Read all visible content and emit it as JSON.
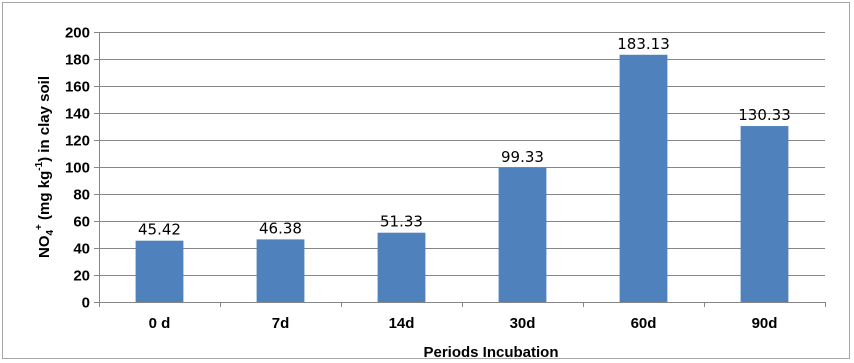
{
  "chart_data": {
    "type": "bar",
    "categories": [
      "0 d",
      "7d",
      "14d",
      "30d",
      "60d",
      "90d"
    ],
    "values": [
      45.42,
      46.38,
      51.33,
      99.33,
      183.13,
      130.33
    ],
    "data_labels": [
      "45.42",
      "46.38",
      "51.33",
      "99.33",
      "183.13",
      "130.33"
    ],
    "title": "",
    "xlabel": "Periods Incubation",
    "ylabel": {
      "base": "NO",
      "sub": "4",
      "sup": "+",
      "mid": " (mg kg",
      "unit_sup": "-1",
      "end": ") in clay soil"
    },
    "ylim": [
      0,
      200
    ],
    "yticks": [
      "0",
      "20",
      "40",
      "60",
      "80",
      "100",
      "120",
      "140",
      "160",
      "180",
      "200"
    ],
    "grid": true,
    "legend": "none",
    "colors": {
      "bar": "#4f81bd",
      "grid": "#868686",
      "axis": "#868686"
    }
  }
}
